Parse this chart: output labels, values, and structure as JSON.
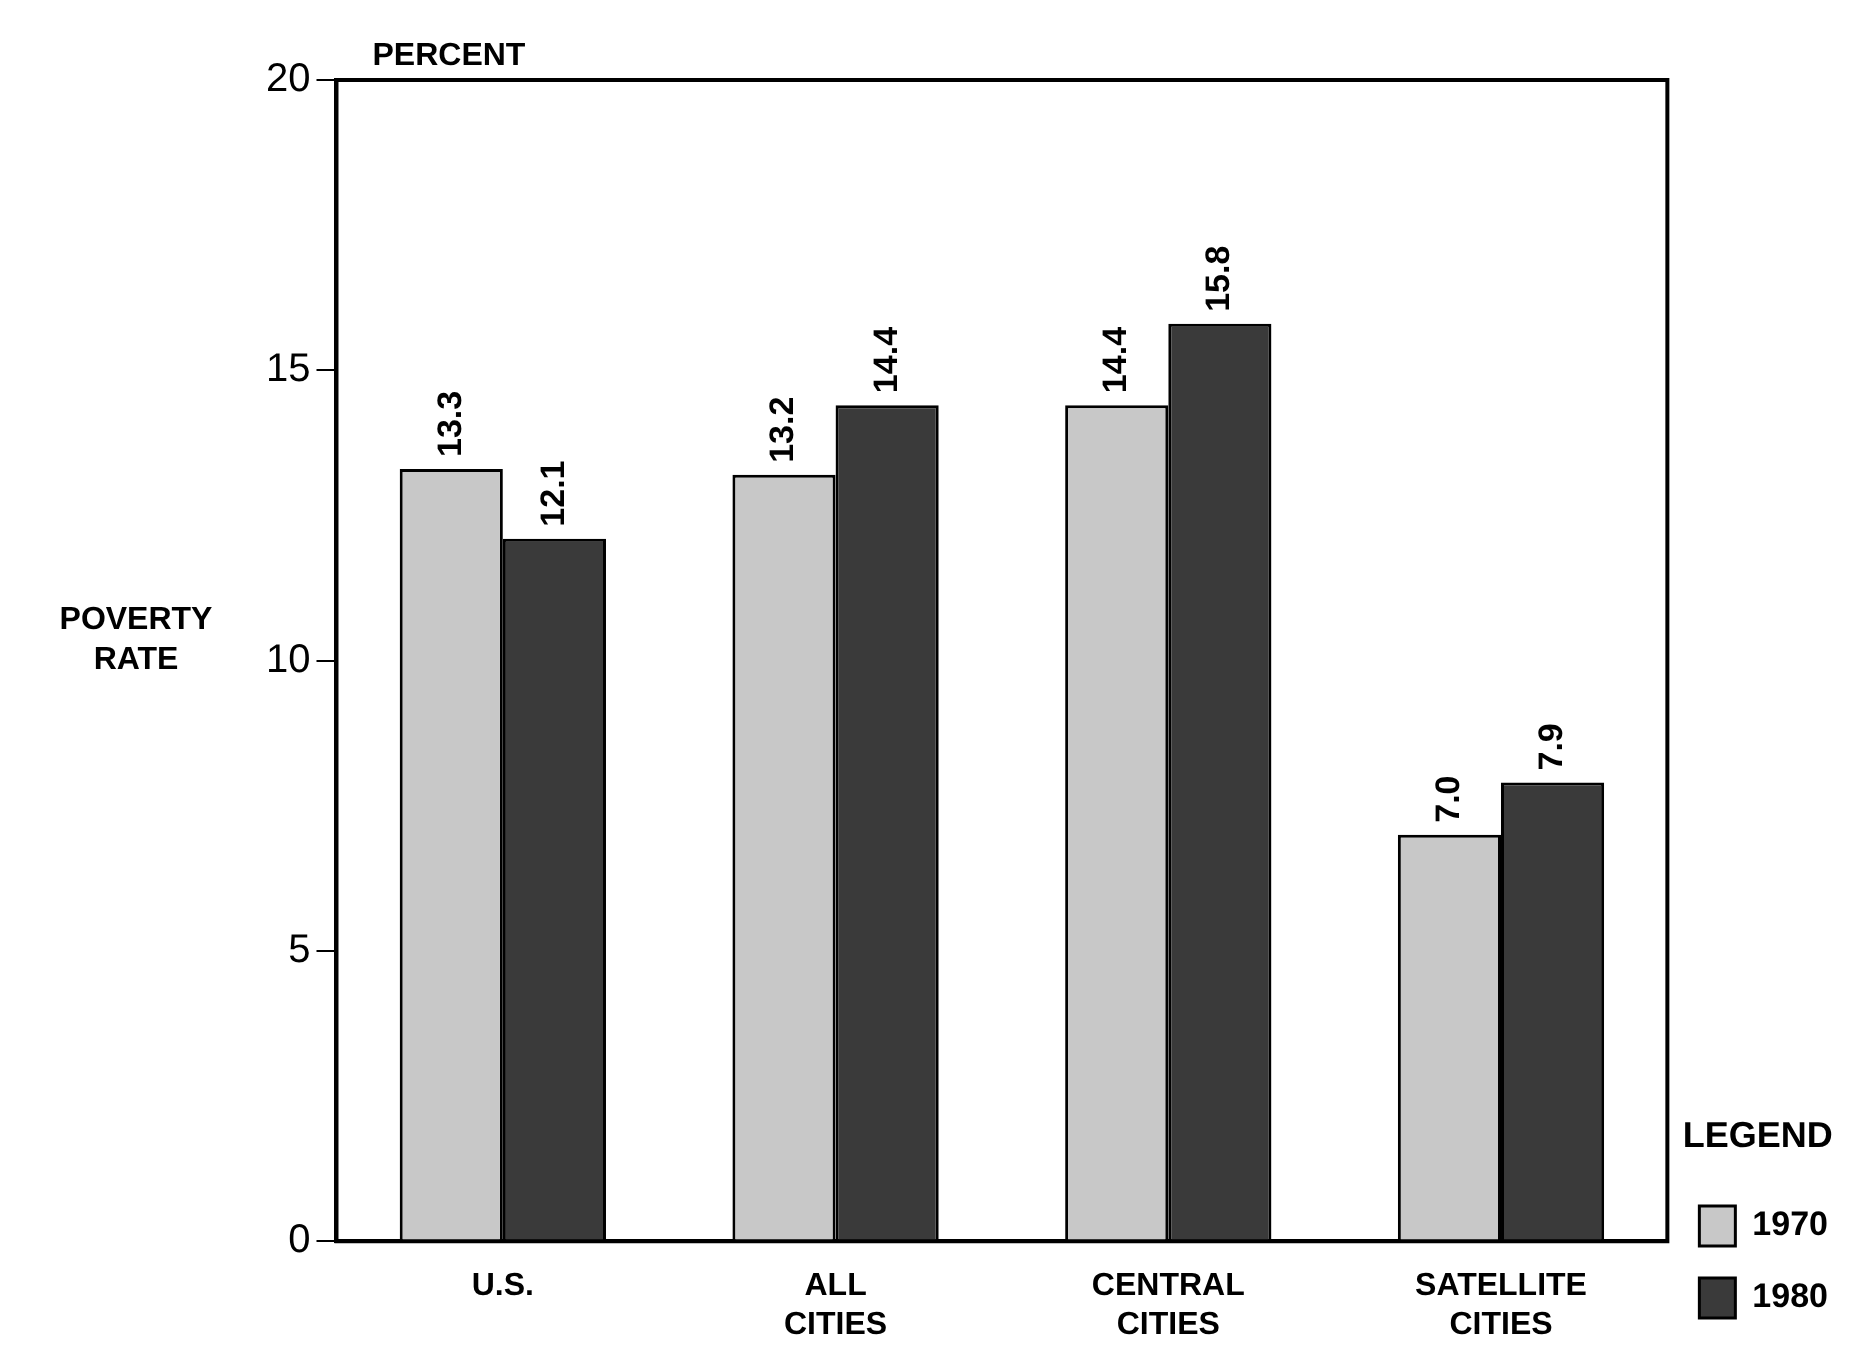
{
  "chart_data": {
    "type": "bar",
    "ylabel": "POVERTY RATE",
    "annotations": [
      "PERCENT"
    ],
    "legend_title": "LEGEND",
    "categories": [
      "U.S.",
      "ALL CITIES",
      "CENTRAL CITIES",
      "SATELLITE CITIES"
    ],
    "series": [
      {
        "name": "1970",
        "color": "#c8c8c8",
        "values": [
          13.3,
          13.2,
          14.4,
          7.0
        ],
        "value_labels": [
          "13.3",
          "13.2",
          "14.4",
          "7.0"
        ]
      },
      {
        "name": "1980",
        "color": "#3a3a3a",
        "values": [
          12.1,
          14.4,
          15.8,
          7.9
        ],
        "value_labels": [
          "12.1",
          "14.4",
          "15.8",
          "7.9"
        ]
      }
    ],
    "ylim": [
      0,
      20
    ],
    "yticks": [
      0,
      5,
      10,
      15,
      20
    ],
    "grid": false,
    "legend": "bottom right"
  }
}
